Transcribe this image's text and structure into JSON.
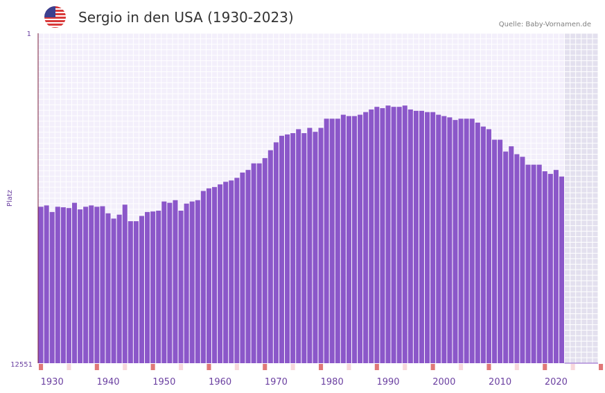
{
  "header": {
    "title": "Sergio in den USA (1930-2023)",
    "source": "Quelle: Baby-Vornamen.de",
    "flag_icon": "us-flag-icon"
  },
  "chart_data": {
    "type": "bar",
    "title": "Sergio in den USA (1930-2023)",
    "ylabel": "Platz",
    "xlabel": "",
    "y_axis_reversed": true,
    "ylim": [
      12551,
      1
    ],
    "y_tick_labels": [
      "1",
      "12551"
    ],
    "x_tick_labels": [
      "1930",
      "1940",
      "1950",
      "1960",
      "1970",
      "1980",
      "1990",
      "2000",
      "2010",
      "2020"
    ],
    "x_range": [
      1928,
      2028
    ],
    "years": [
      1928,
      1929,
      1930,
      1931,
      1932,
      1933,
      1934,
      1935,
      1936,
      1937,
      1938,
      1939,
      1940,
      1941,
      1942,
      1943,
      1944,
      1945,
      1946,
      1947,
      1948,
      1949,
      1950,
      1951,
      1952,
      1953,
      1954,
      1955,
      1956,
      1957,
      1958,
      1959,
      1960,
      1961,
      1962,
      1963,
      1964,
      1965,
      1966,
      1967,
      1968,
      1969,
      1970,
      1971,
      1972,
      1973,
      1974,
      1975,
      1976,
      1977,
      1978,
      1979,
      1980,
      1981,
      1982,
      1983,
      1984,
      1985,
      1986,
      1987,
      1988,
      1989,
      1990,
      1991,
      1992,
      1993,
      1994,
      1995,
      1996,
      1997,
      1998,
      1999,
      2000,
      2001,
      2002,
      2003,
      2004,
      2005,
      2006,
      2007,
      2008,
      2009,
      2010,
      2011,
      2012,
      2013,
      2014,
      2015,
      2016,
      2017,
      2018,
      2019,
      2020,
      2021
    ],
    "ranks": [
      6600,
      6550,
      6800,
      6600,
      6620,
      6650,
      6450,
      6700,
      6600,
      6550,
      6600,
      6580,
      6850,
      7050,
      6900,
      6520,
      7150,
      7150,
      6950,
      6800,
      6780,
      6750,
      6400,
      6450,
      6350,
      6750,
      6480,
      6400,
      6350,
      6000,
      5900,
      5850,
      5750,
      5650,
      5600,
      5500,
      5300,
      5200,
      4950,
      4950,
      4750,
      4450,
      4150,
      3900,
      3850,
      3800,
      3650,
      3800,
      3600,
      3750,
      3600,
      3250,
      3250,
      3250,
      3100,
      3150,
      3150,
      3100,
      3000,
      2900,
      2800,
      2850,
      2750,
      2800,
      2800,
      2750,
      2900,
      2950,
      2950,
      3000,
      3000,
      3100,
      3150,
      3200,
      3300,
      3250,
      3250,
      3250,
      3400,
      3550,
      3650,
      4050,
      4050,
      4500,
      4300,
      4600,
      4700,
      5000,
      5000,
      5000,
      5250,
      5350,
      5200,
      5450
    ]
  },
  "colors": {
    "bar": "#8b57c9",
    "plot_bg": "#f3effb",
    "future_bg": "#e3e0ee",
    "grid": "#ffffff",
    "axis": "#7a1c3a",
    "tick_label": "#6a3fa0",
    "marker_strong": "#e07878",
    "marker_light": "#f8d8dc"
  }
}
